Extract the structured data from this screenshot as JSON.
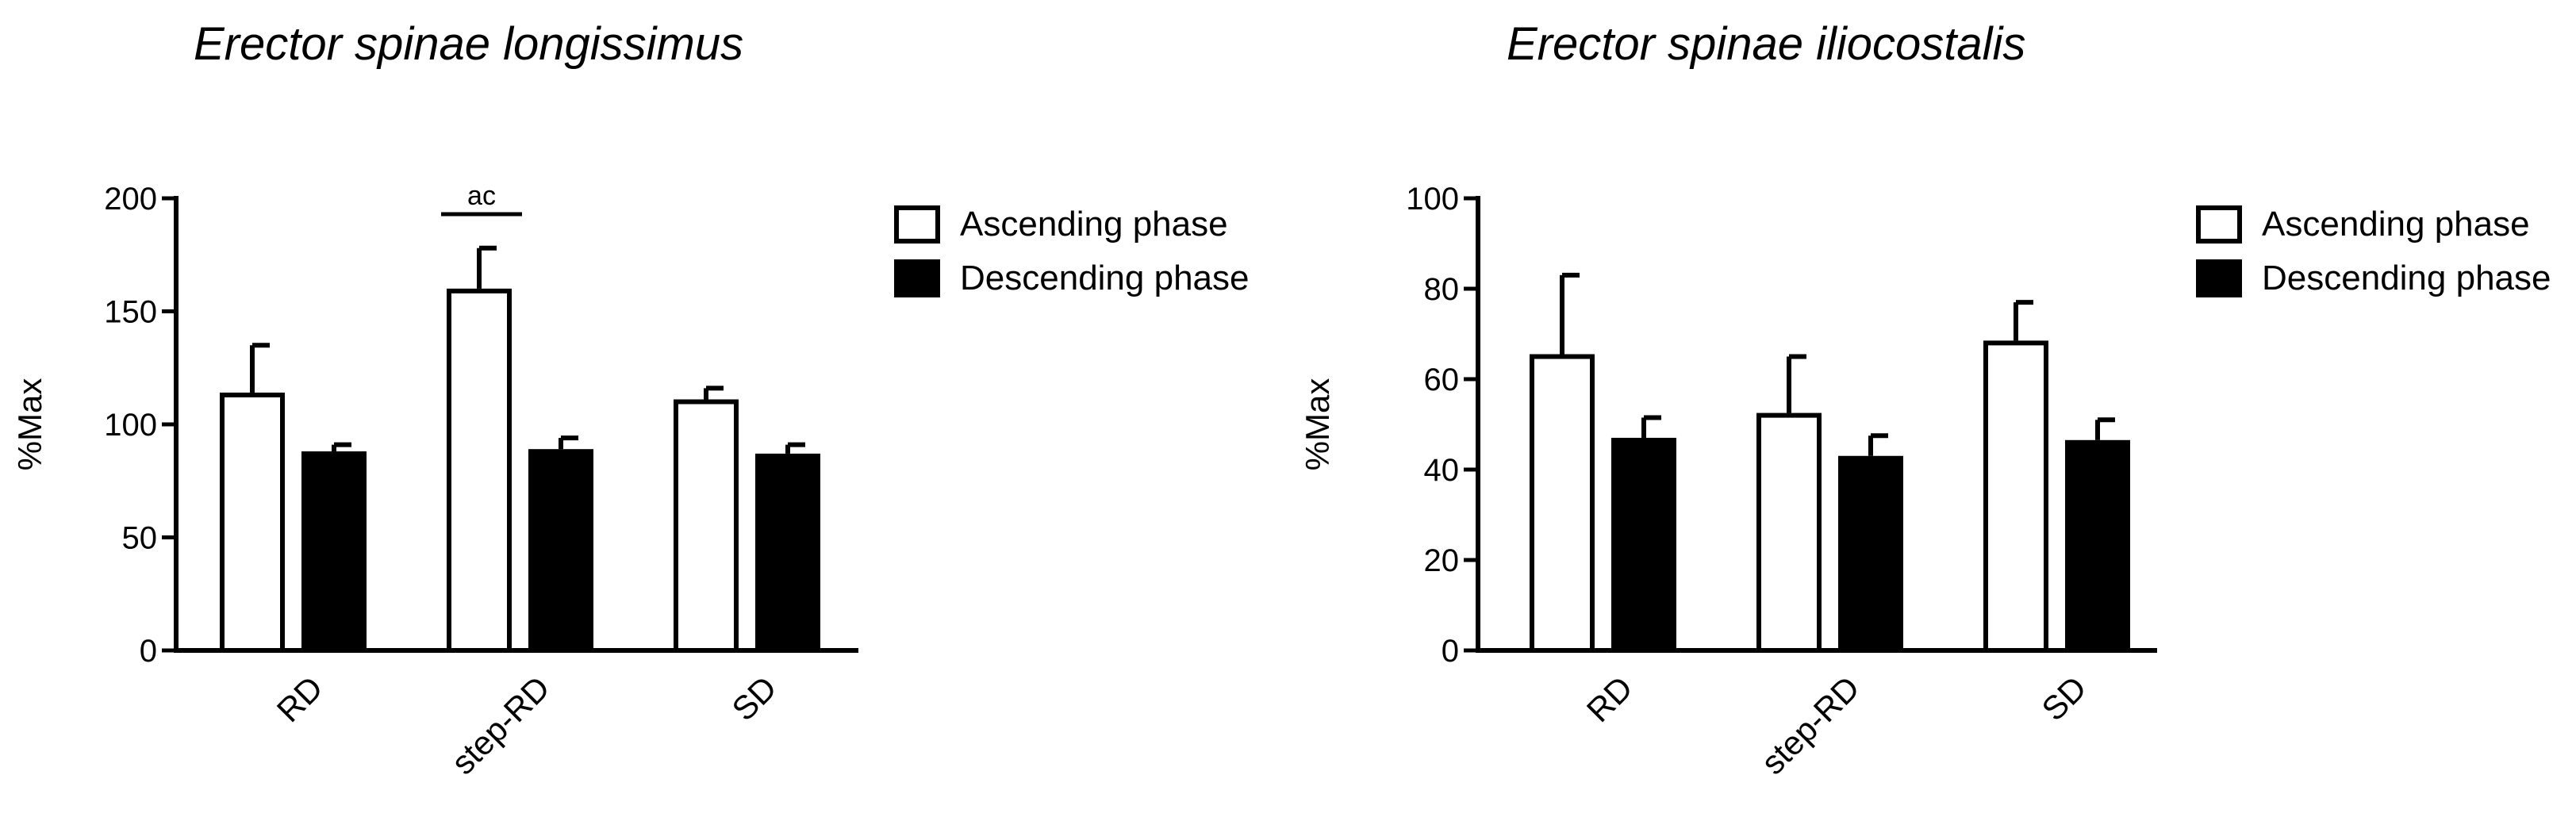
{
  "chart_data": [
    {
      "type": "bar",
      "title": "Erector spinae longissimus",
      "ylabel": "%Max",
      "xlabel": "",
      "ylim": [
        0,
        200
      ],
      "yticks": [
        0,
        50,
        100,
        150,
        200
      ],
      "categories": [
        "RD",
        "step-RD",
        "SD"
      ],
      "series": [
        {
          "name": "Ascending phase",
          "color": "#ffffff",
          "values": [
            113,
            159,
            110
          ],
          "errors": [
            22,
            19,
            6
          ]
        },
        {
          "name": "Descending phase",
          "color": "#000000",
          "values": [
            87,
            88,
            86
          ],
          "errors": [
            4,
            6,
            5
          ]
        }
      ],
      "annotations": [
        {
          "text": "ac",
          "category": "step-RD"
        }
      ],
      "legend_position": "top-right",
      "grid": false
    },
    {
      "type": "bar",
      "title": "Erector spinae iliocostalis",
      "ylabel": "%Max",
      "xlabel": "",
      "ylim": [
        0,
        100
      ],
      "yticks": [
        0,
        20,
        40,
        60,
        80,
        100
      ],
      "categories": [
        "RD",
        "step-RD",
        "SD"
      ],
      "series": [
        {
          "name": "Ascending phase",
          "color": "#ffffff",
          "values": [
            65,
            52,
            68
          ],
          "errors": [
            18,
            13,
            9
          ]
        },
        {
          "name": "Descending phase",
          "color": "#000000",
          "values": [
            46.5,
            42.5,
            46
          ],
          "errors": [
            5,
            5,
            5
          ]
        }
      ],
      "annotations": [],
      "legend_position": "top-right",
      "grid": false
    }
  ]
}
